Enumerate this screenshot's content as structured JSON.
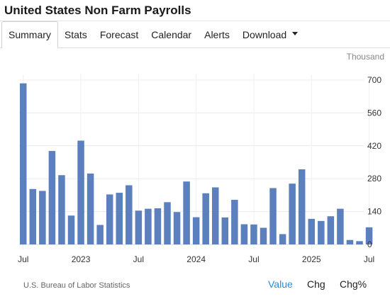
{
  "title": "United States Non Farm Payrolls",
  "tabs": [
    {
      "label": "Summary",
      "active": true
    },
    {
      "label": "Stats"
    },
    {
      "label": "Forecast"
    },
    {
      "label": "Calendar"
    },
    {
      "label": "Alerts"
    },
    {
      "label": "Download",
      "dropdown": true
    }
  ],
  "source": "U.S. Bureau of Labor Statistics",
  "view_buttons": [
    {
      "label": "Value",
      "active": true
    },
    {
      "label": "Chg"
    },
    {
      "label": "Chg%"
    }
  ],
  "colors": {
    "bar": "#5b80bd",
    "active_button": "#2b8ad8"
  },
  "chart_data": {
    "type": "bar",
    "unit": "Thousand",
    "ylim": [
      0,
      700
    ],
    "yticks": [
      0,
      140,
      280,
      420,
      560,
      700
    ],
    "y_axis_side": "right",
    "grid": true,
    "x_tick_labels": [
      "Jul",
      "2023",
      "Jul",
      "2024",
      "Jul",
      "2025",
      "Jul"
    ],
    "categories": [
      "2022-07",
      "2022-08",
      "2022-09",
      "2022-10",
      "2022-11",
      "2022-12",
      "2023-01",
      "2023-02",
      "2023-03",
      "2023-04",
      "2023-05",
      "2023-06",
      "2023-07",
      "2023-08",
      "2023-09",
      "2023-10",
      "2023-11",
      "2023-12",
      "2024-01",
      "2024-02",
      "2024-03",
      "2024-04",
      "2024-05",
      "2024-06",
      "2024-07",
      "2024-08",
      "2024-09",
      "2024-10",
      "2024-11",
      "2024-12",
      "2025-01",
      "2025-02",
      "2025-03",
      "2025-04",
      "2025-05",
      "2025-06",
      "2025-07"
    ],
    "values": [
      686,
      236,
      228,
      398,
      295,
      123,
      442,
      302,
      83,
      213,
      220,
      252,
      144,
      152,
      154,
      180,
      138,
      268,
      116,
      218,
      243,
      115,
      190,
      86,
      85,
      71,
      240,
      44,
      259,
      320,
      109,
      100,
      120,
      152,
      19,
      14,
      73
    ]
  }
}
